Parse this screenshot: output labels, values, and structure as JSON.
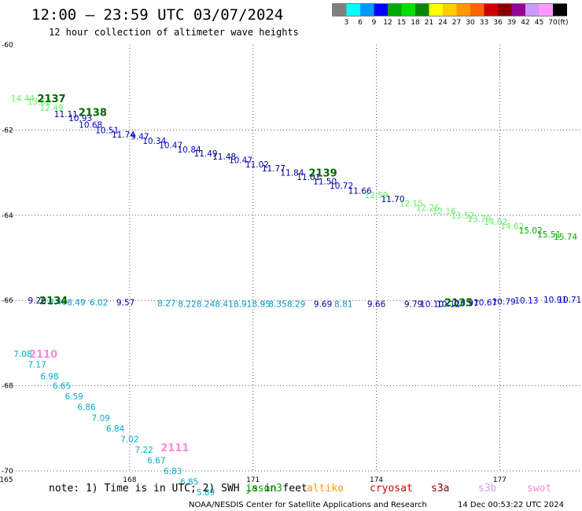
{
  "header": {
    "title": "12:00 – 23:59 UTC 03/07/2024",
    "subtitle": "12 hour collection of altimeter wave heights"
  },
  "legend": {
    "colors": [
      "#808080",
      "#00ffff",
      "#0099ff",
      "#0000ff",
      "#00aa00",
      "#00e000",
      "#008800",
      "#ffff00",
      "#ffcc00",
      "#ff9900",
      "#ff6600",
      "#cc0000",
      "#880000",
      "#990099",
      "#cc99ff",
      "#ff99ff",
      "#000000"
    ],
    "labels": [
      "3",
      "6",
      "9",
      "12",
      "15",
      "18",
      "21",
      "24",
      "27",
      "30",
      "33",
      "36",
      "39",
      "42",
      "45",
      "70"
    ],
    "unit": "(ft)"
  },
  "notes": {
    "note": "note:  1) Time is in UTC; 2) SWH is in feet",
    "satellites": [
      {
        "name": "jason3",
        "color": "#00aa00"
      },
      {
        "name": "altiko",
        "color": "#ff9900"
      },
      {
        "name": "cryosat",
        "color": "#dd0000"
      },
      {
        "name": "s3a",
        "color": "#880000"
      },
      {
        "name": "s3b",
        "color": "#c8a8f0"
      },
      {
        "name": "swot",
        "color": "#ff88dd"
      }
    ],
    "credit": "NOAA/NESDIS Center for Satellite Applications and Research",
    "timestamp": "14 Dec 00:53:22 UTC 2024"
  },
  "chart_data": {
    "type": "scatter",
    "xlim": [
      165,
      179
    ],
    "ylim": [
      -70,
      -60
    ],
    "x_ticks": [
      "165",
      "168",
      "171",
      "174",
      "177"
    ],
    "y_ticks": [
      "-60",
      "-62",
      "-64",
      "-66",
      "-68",
      "-70"
    ],
    "grid": true,
    "series": [
      {
        "name": "2137",
        "color": "#00aa00",
        "label_color": "#006600",
        "label_at": [
          166.1,
          -61.25
        ],
        "points": [
          {
            "x": 165.4,
            "y": -61.25,
            "v": "14.44",
            "c": "#66ee66"
          },
          {
            "x": 165.8,
            "y": -61.33,
            "v": "13.62",
            "c": "#66ee66"
          },
          {
            "x": 166.1,
            "y": -61.48,
            "v": "12.49",
            "c": "#66ee66"
          },
          {
            "x": 166.45,
            "y": -61.62,
            "v": "11.11",
            "c": "#000099"
          },
          {
            "x": 166.8,
            "y": -61.72,
            "v": "10.93",
            "c": "#0000cc"
          }
        ]
      },
      {
        "name": "2138",
        "color": "#00aa00",
        "label_color": "#006600",
        "label_at": [
          167.1,
          -61.58
        ],
        "points": [
          {
            "x": 167.05,
            "y": -61.87,
            "v": "10.68",
            "c": "#0000cc"
          },
          {
            "x": 167.45,
            "y": -62.0,
            "v": "10.51",
            "c": "#0000cc"
          },
          {
            "x": 167.85,
            "y": -62.1,
            "v": "11.74",
            "c": "#000099"
          },
          {
            "x": 168.25,
            "y": -62.15,
            "v": "9.47",
            "c": "#0000cc"
          },
          {
            "x": 168.6,
            "y": -62.25,
            "v": "10.34",
            "c": "#0000cc"
          },
          {
            "x": 169.0,
            "y": -62.35,
            "v": "10.47",
            "c": "#0000cc"
          },
          {
            "x": 169.45,
            "y": -62.45,
            "v": "10.84",
            "c": "#0000cc"
          },
          {
            "x": 169.85,
            "y": -62.55,
            "v": "11.49",
            "c": "#000099"
          },
          {
            "x": 170.3,
            "y": -62.62,
            "v": "11.48",
            "c": "#000099"
          },
          {
            "x": 170.7,
            "y": -62.7,
            "v": "10.47",
            "c": "#0000cc"
          },
          {
            "x": 171.1,
            "y": -62.8,
            "v": "11.02",
            "c": "#000099"
          },
          {
            "x": 171.5,
            "y": -62.9,
            "v": "11.77",
            "c": "#000099"
          },
          {
            "x": 171.95,
            "y": -63.0,
            "v": "11.84",
            "c": "#000099"
          },
          {
            "x": 172.35,
            "y": -63.1,
            "v": "11.01",
            "c": "#000099"
          }
        ]
      },
      {
        "name": "2139",
        "color": "#00aa00",
        "label_color": "#006600",
        "label_at": [
          172.7,
          -63.0
        ],
        "points": [
          {
            "x": 172.75,
            "y": -63.2,
            "v": "11.50",
            "c": "#000099"
          },
          {
            "x": 173.15,
            "y": -63.3,
            "v": "10.72",
            "c": "#0000cc"
          },
          {
            "x": 173.6,
            "y": -63.42,
            "v": "11.66",
            "c": "#000099"
          },
          {
            "x": 174.0,
            "y": -63.52,
            "v": "12.59",
            "c": "#66ee66"
          },
          {
            "x": 174.4,
            "y": -63.62,
            "v": "11.70",
            "c": "#000099"
          },
          {
            "x": 174.85,
            "y": -63.72,
            "v": "12.15",
            "c": "#66ee66"
          },
          {
            "x": 175.25,
            "y": -63.82,
            "v": "12.26",
            "c": "#66ee66"
          },
          {
            "x": 175.65,
            "y": -63.9,
            "v": "12.16",
            "c": "#66ee66"
          },
          {
            "x": 176.1,
            "y": -64.0,
            "v": "13.52",
            "c": "#66ee66"
          },
          {
            "x": 176.5,
            "y": -64.08,
            "v": "13.79",
            "c": "#66ee66"
          },
          {
            "x": 176.9,
            "y": -64.15,
            "v": "14.02",
            "c": "#66ee66"
          },
          {
            "x": 177.3,
            "y": -64.25,
            "v": "14.62",
            "c": "#66ee66"
          },
          {
            "x": 177.75,
            "y": -64.35,
            "v": "15.02",
            "c": "#00aa00"
          },
          {
            "x": 178.2,
            "y": -64.45,
            "v": "15.51",
            "c": "#00aa00"
          },
          {
            "x": 178.6,
            "y": -64.5,
            "v": "15.74",
            "c": "#00aa00"
          }
        ]
      },
      {
        "name": "2134",
        "color": "#00aa00",
        "label_color": "#006600",
        "label_at": [
          166.15,
          -66.0
        ],
        "points": [
          {
            "x": 165.75,
            "y": -66.0,
            "v": "9.20",
            "c": "#000099"
          },
          {
            "x": 166.25,
            "y": -66.02,
            "v": "8.48",
            "c": "#0099cc"
          },
          {
            "x": 166.7,
            "y": -66.04,
            "v": "8.49",
            "c": "#0099cc"
          },
          {
            "x": 167.25,
            "y": -66.04,
            "v": "6.02",
            "c": "#0099cc"
          },
          {
            "x": 167.9,
            "y": -66.04,
            "v": "9.57",
            "c": "#000099"
          },
          {
            "x": 168.9,
            "y": -66.06,
            "v": "8.27",
            "c": "#0099cc"
          },
          {
            "x": 169.4,
            "y": -66.08,
            "v": "8.22",
            "c": "#0099cc"
          },
          {
            "x": 169.85,
            "y": -66.08,
            "v": "8.24",
            "c": "#0099cc"
          },
          {
            "x": 170.3,
            "y": -66.08,
            "v": "8.41",
            "c": "#0099cc"
          },
          {
            "x": 170.75,
            "y": -66.08,
            "v": "8.91",
            "c": "#0099cc"
          },
          {
            "x": 171.2,
            "y": -66.08,
            "v": "8.95",
            "c": "#0099cc"
          },
          {
            "x": 171.6,
            "y": -66.08,
            "v": "8.35",
            "c": "#0099cc"
          },
          {
            "x": 172.05,
            "y": -66.08,
            "v": "8.29",
            "c": "#0099cc"
          },
          {
            "x": 172.7,
            "y": -66.08,
            "v": "9.69",
            "c": "#000099"
          },
          {
            "x": 173.2,
            "y": -66.08,
            "v": "8.81",
            "c": "#0099cc"
          },
          {
            "x": 174.0,
            "y": -66.08,
            "v": "9.66",
            "c": "#000099"
          },
          {
            "x": 174.9,
            "y": -66.08,
            "v": "9.79",
            "c": "#000099"
          },
          {
            "x": 175.35,
            "y": -66.08,
            "v": "10.10",
            "c": "#0000cc"
          },
          {
            "x": 175.75,
            "y": -66.08,
            "v": "10.12",
            "c": "#0000cc"
          },
          {
            "x": 176.2,
            "y": -66.06,
            "v": "10.97",
            "c": "#0000cc"
          },
          {
            "x": 176.65,
            "y": -66.04,
            "v": "10.67",
            "c": "#0000cc"
          },
          {
            "x": 177.1,
            "y": -66.02,
            "v": "10.79",
            "c": "#0000cc"
          },
          {
            "x": 177.65,
            "y": -66.0,
            "v": "10.13",
            "c": "#0000cc"
          },
          {
            "x": 178.35,
            "y": -65.98,
            "v": "10.91",
            "c": "#0000cc"
          },
          {
            "x": 178.7,
            "y": -65.98,
            "v": "10.71",
            "c": "#0000cc"
          }
        ]
      },
      {
        "name": "2135",
        "color": "#00aa00",
        "label_color": "#006600",
        "label_at": [
          176.0,
          -66.04
        ],
        "points": []
      },
      {
        "name": "2110",
        "color": "#ff99ff",
        "label_color": "#ff88dd",
        "label_at": [
          165.9,
          -67.25
        ],
        "points": [
          {
            "x": 165.4,
            "y": -67.25,
            "v": "7.08",
            "c": "#00aacc"
          },
          {
            "x": 165.75,
            "y": -67.5,
            "v": "7.17",
            "c": "#00aacc"
          },
          {
            "x": 166.05,
            "y": -67.78,
            "v": "6.98",
            "c": "#00aacc"
          },
          {
            "x": 166.35,
            "y": -68.0,
            "v": "6.65",
            "c": "#00aacc"
          },
          {
            "x": 166.65,
            "y": -68.25,
            "v": "6.59",
            "c": "#00aacc"
          },
          {
            "x": 166.95,
            "y": -68.5,
            "v": "6.86",
            "c": "#00aacc"
          },
          {
            "x": 167.3,
            "y": -68.75,
            "v": "7.09",
            "c": "#00aacc"
          },
          {
            "x": 167.65,
            "y": -69.0,
            "v": "6.84",
            "c": "#00aacc"
          },
          {
            "x": 168.0,
            "y": -69.25,
            "v": "7.02",
            "c": "#00aacc"
          },
          {
            "x": 168.35,
            "y": -69.5,
            "v": "7.22",
            "c": "#00aacc"
          }
        ]
      },
      {
        "name": "2111",
        "color": "#ff99ff",
        "label_color": "#ff88dd",
        "label_at": [
          169.1,
          -69.45
        ],
        "points": [
          {
            "x": 168.65,
            "y": -69.75,
            "v": "6.67",
            "c": "#00aacc"
          },
          {
            "x": 169.05,
            "y": -70.0,
            "v": "6.83",
            "c": "#00aacc"
          },
          {
            "x": 169.45,
            "y": -70.25,
            "v": "6.85",
            "c": "#00aacc"
          },
          {
            "x": 169.85,
            "y": -70.5,
            "v": "5.89",
            "c": "#00aacc"
          }
        ]
      }
    ]
  }
}
